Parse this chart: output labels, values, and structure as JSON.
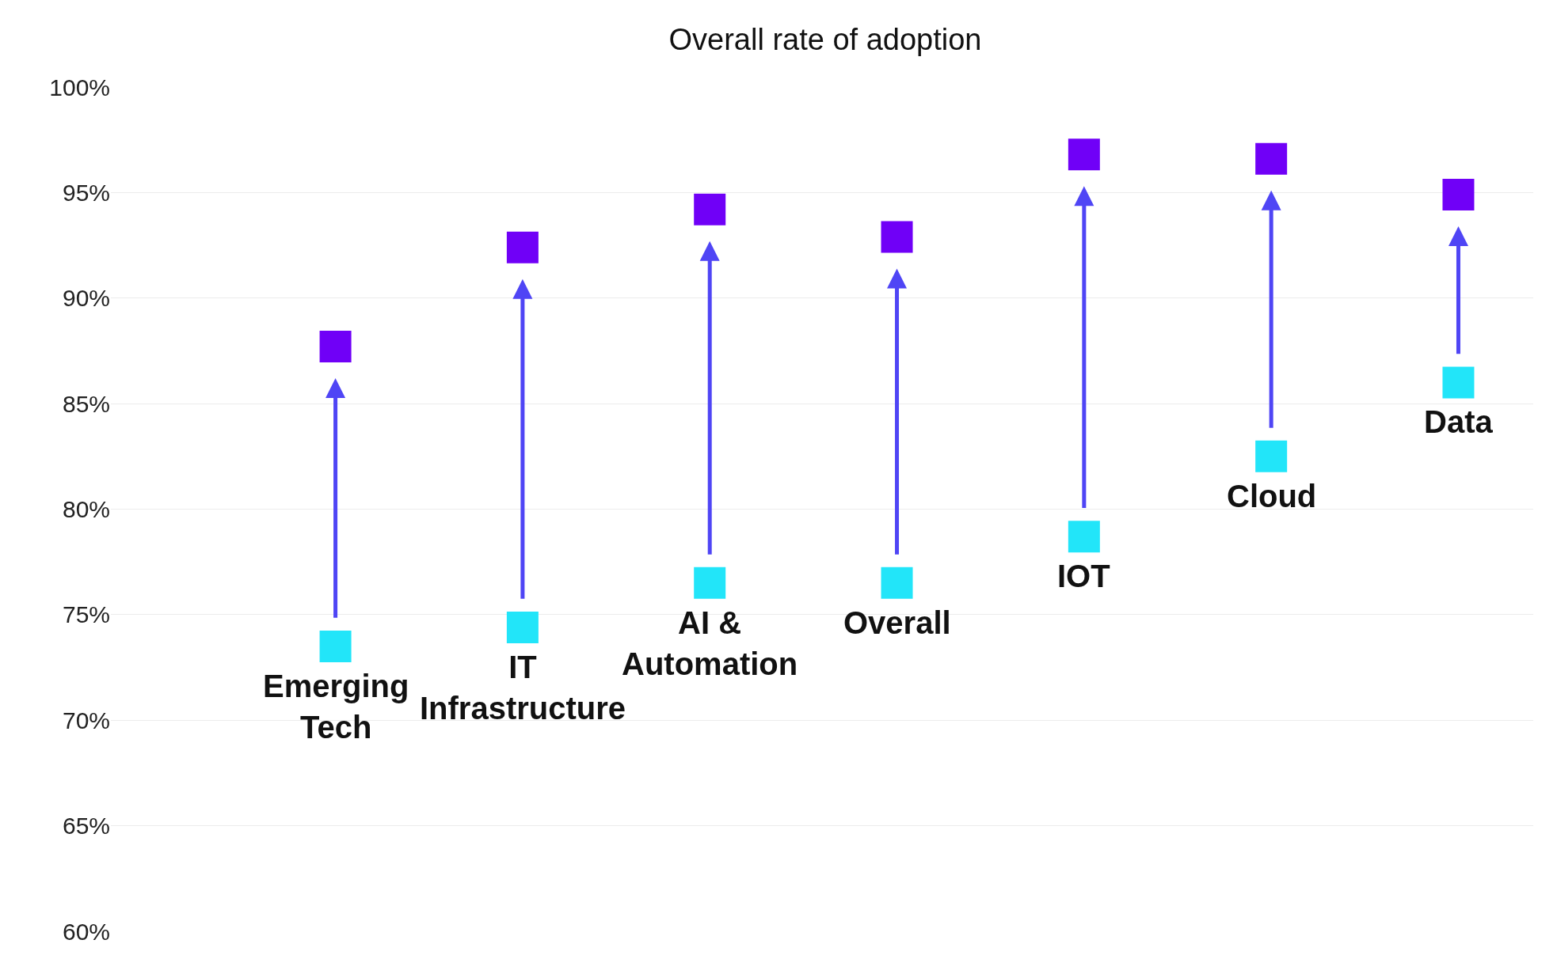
{
  "chart_data": {
    "type": "scatter",
    "title": "Overall rate of adoption",
    "categories": [
      "Emerging\nTech",
      "IT\nInfrastructure",
      "AI &\nAutomation",
      "Overall",
      "IOT",
      "Cloud",
      "Data"
    ],
    "series": [
      {
        "color": "#22e5f9",
        "values": [
          73.5,
          74.4,
          76.5,
          76.5,
          78.7,
          82.5,
          86.0
        ]
      },
      {
        "color": "#7000f7",
        "values": [
          87.7,
          92.4,
          94.2,
          92.9,
          96.8,
          96.6,
          94.9
        ]
      }
    ],
    "marker": "square",
    "grid": "y",
    "ylim": [
      60,
      100
    ],
    "yticks": [
      {
        "value": 60,
        "label": "60%"
      },
      {
        "value": 65,
        "label": "65%"
      },
      {
        "value": 70,
        "label": "70%"
      },
      {
        "value": 75,
        "label": "75%"
      },
      {
        "value": 80,
        "label": "80%"
      },
      {
        "value": 85,
        "label": "85%"
      },
      {
        "value": 90,
        "label": "90%"
      },
      {
        "value": 95,
        "label": "95%"
      },
      {
        "value": 100,
        "label": "100%"
      }
    ],
    "tick_labels": "y"
  }
}
